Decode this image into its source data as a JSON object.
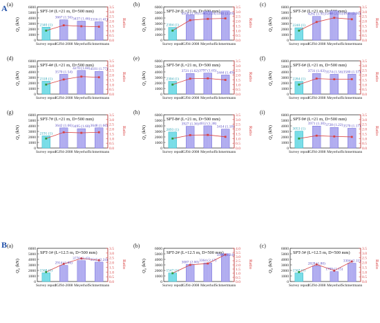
{
  "figure": {
    "section_labels": [
      "A",
      "B"
    ],
    "y_left_label": "Q",
    "y_left_label_sub": "u",
    "y_left_unit": " (kN)",
    "y_right_label": "Ratio",
    "categories": [
      "Survey report",
      "JGJ94-2008",
      "Meyerhof",
      "Schmertmann"
    ],
    "colors": {
      "bar_first_fill": "#7fe0ea",
      "bar_first_stroke": "#2cb3c4",
      "bar_fill": "#b7b3f2",
      "bar_stroke": "#6a63d8",
      "line": "#d94040",
      "marker": "#d94040",
      "first_marker": "#2a9a3a",
      "right_axis": "#d94040"
    }
  },
  "chart_data": [
    {
      "type": "bar",
      "panel": "(a)",
      "title": "SPT-1# (L=21 m, D=500 mm)",
      "categories": [
        "Survey report",
        "JGJ94-2008",
        "Meyerhof",
        "Schmertmann"
      ],
      "values": [
        2340,
        3667,
        3437,
        3316
      ],
      "ratios": [
        1,
        1.56,
        1.46,
        1.41
      ],
      "labels": [
        "2340 (1)",
        "3667 (1.56)",
        "3437 (1.46)",
        "3316 (1.41)"
      ],
      "ylim": [
        0,
        6000
      ],
      "ylim_right": [
        0,
        3.5
      ]
    },
    {
      "type": "bar",
      "panel": "(b)",
      "title": "SPT-2# (L=21 m, D=500 mm)",
      "categories": [
        "Survey report",
        "JGJ94-2008",
        "Meyerhof",
        "Schmertmann"
      ],
      "values": [
        2304,
        4560,
        5160,
        5283
      ],
      "ratios": [
        1,
        2.1,
        2.24,
        2.29
      ],
      "labels": [
        "2304 (1)",
        "4560 (2.10)",
        "5160 (2.24)",
        "5283 (2.29)"
      ],
      "ylim": [
        0,
        6000
      ],
      "ylim_right": [
        0,
        3.5
      ]
    },
    {
      "type": "bar",
      "panel": "(c)",
      "title": "SPT-3# (L=21 m, D=500 mm)",
      "categories": [
        "Survey report",
        "JGJ94-2008",
        "Meyerhof",
        "Schmertmann"
      ],
      "values": [
        2240,
        4282,
        5268,
        4931
      ],
      "ratios": [
        1,
        1.91,
        2.35,
        2.2
      ],
      "labels": [
        "2240 (1)",
        "4282 (1.91)",
        "5268 (2.35)",
        "4931 (2.20)"
      ],
      "ylim": [
        0,
        6000
      ],
      "ylim_right": [
        0,
        3.5
      ]
    },
    {
      "type": "bar",
      "panel": "(d)",
      "title": "SPT-4# (L=21 m, D=500 mm)",
      "categories": [
        "Survey report",
        "JGJ94-2008",
        "Meyerhof",
        "Schmertmann"
      ],
      "values": [
        2318,
        3570,
        4270,
        4101
      ],
      "ratios": [
        1,
        1.54,
        1.84,
        1.77
      ],
      "labels": [
        "2318 (1)",
        "3570 (1.54)",
        "4270 (1.84)",
        "4101 (1.77)"
      ],
      "ylim": [
        0,
        6000
      ],
      "ylim_right": [
        0,
        3.5
      ]
    },
    {
      "type": "bar",
      "panel": "(e)",
      "title": "SPT-5# (L=21 m, D=500 mm)",
      "categories": [
        "Survey report",
        "JGJ94-2008",
        "Meyerhof",
        "Schmertmann"
      ],
      "values": [
        2304,
        3721,
        3797,
        3444
      ],
      "ratios": [
        1,
        1.62,
        1.65,
        1.49
      ],
      "labels": [
        "2304 (1)",
        "3721 (1.62)",
        "3797 (1.65)",
        "3444 (1.49)"
      ],
      "ylim": [
        0,
        6000
      ],
      "ylim_right": [
        0,
        3.5
      ]
    },
    {
      "type": "bar",
      "panel": "(f)",
      "title": "SPT-6# (L=21 m, D=500 mm)",
      "categories": [
        "Survey report",
        "JGJ94-2008",
        "Meyerhof",
        "Schmertmann"
      ],
      "values": [
        2284,
        3731,
        3574,
        3580
      ],
      "ratios": [
        1,
        1.63,
        1.56,
        1.57
      ],
      "labels": [
        "2284 (1)",
        "3731 (1.63)",
        "3574 (1.56)",
        "3580 (1.57)"
      ],
      "ylim": [
        0,
        6000
      ],
      "ylim_right": [
        0,
        3.5
      ]
    },
    {
      "type": "bar",
      "panel": "(g)",
      "title": "SPT-7# (L=21 m, D=500 mm)",
      "categories": [
        "Survey report",
        "JGJ94-2008",
        "Meyerhof",
        "Schmertmann"
      ],
      "values": [
        2191,
        3642,
        3495,
        3648
      ],
      "ratios": [
        1,
        1.66,
        1.6,
        1.66
      ],
      "labels": [
        "2191 (1)",
        "3642 (1.66)",
        "3495 (1.60)",
        "3648 (1.66)"
      ],
      "ylim": [
        0,
        6000
      ],
      "ylim_right": [
        0,
        3.5
      ]
    },
    {
      "type": "bar",
      "panel": "(h)",
      "title": "SPT-8# (L=21 m, D=500 mm)",
      "categories": [
        "Survey report",
        "JGJ94-2008",
        "Meyerhof",
        "Schmertmann"
      ],
      "values": [
        2893,
        3927,
        4012,
        3414
      ],
      "ratios": [
        1,
        1.36,
        1.38,
        1.18
      ],
      "labels": [
        "2893 (1)",
        "3927 (1.36)",
        "4012 (1.38)",
        "3414 (1.18)"
      ],
      "ylim": [
        0,
        6000
      ],
      "ylim_right": [
        0,
        3.5
      ]
    },
    {
      "type": "bar",
      "panel": "(i)",
      "title": "SPT-9# (L=21 m, D=500 mm)",
      "categories": [
        "Survey report",
        "JGJ94-2008",
        "Meyerhof",
        "Schmertmann"
      ],
      "values": [
        3053,
        3971,
        3728,
        3570
      ],
      "ratios": [
        1,
        1.3,
        1.22,
        1.17
      ],
      "labels": [
        "3053 (1)",
        "3971 (1.30)",
        "3728 (1.22)",
        "3570 (1.17)"
      ],
      "ylim": [
        0,
        6000
      ],
      "ylim_right": [
        0,
        3.5
      ]
    },
    {
      "type": "bar",
      "panel": "(a)",
      "title": "SPT-1# (L=12.5 m, D=500 mm)",
      "categories": [
        "Survey report",
        "JGJ94-2008",
        "Meyerhof",
        "Schmertmann"
      ],
      "values": [
        1568,
        2914,
        3776,
        3515
      ],
      "ratios": [
        1,
        1.86,
        2.43,
        2.24
      ],
      "labels": [
        "1568 (1)",
        "2914 (1.86)",
        "3776 (2.43)",
        "3515 (2.24)"
      ],
      "ylim": [
        0,
        6000
      ],
      "ylim_right": [
        0,
        3.5
      ]
    },
    {
      "type": "bar",
      "panel": "(b)",
      "title": "SPT-2# (L=12.5 m, D=500 mm)",
      "categories": [
        "Survey report",
        "JGJ94-2008",
        "Meyerhof",
        "Schmertmann"
      ],
      "values": [
        1547,
        3087,
        3364,
        5009
      ],
      "ratios": [
        1,
        2.0,
        2.17,
        3.24
      ],
      "labels": [
        "1547 (1)",
        "3087 (2.00)",
        "3364 (2.17)",
        "5009 (3.24)"
      ],
      "ylim": [
        0,
        6000
      ],
      "ylim_right": [
        0,
        4.0
      ]
    },
    {
      "type": "bar",
      "panel": "(c)",
      "title": "SPT-3# (L=12.5 m, D=500 mm)",
      "categories": [
        "Survey report",
        "JGJ94-2008",
        "Meyerhof",
        "Schmertmann"
      ],
      "values": [
        1567,
        2828,
        1799,
        3304
      ],
      "ratios": [
        1,
        1.8,
        1.15,
        2.11
      ],
      "labels": [
        "1567 (1)",
        "2828 (1.80)",
        "1799 (1.15)",
        "3304 (2.11)"
      ],
      "ylim": [
        0,
        6000
      ],
      "ylim_right": [
        0,
        3.5
      ]
    }
  ]
}
